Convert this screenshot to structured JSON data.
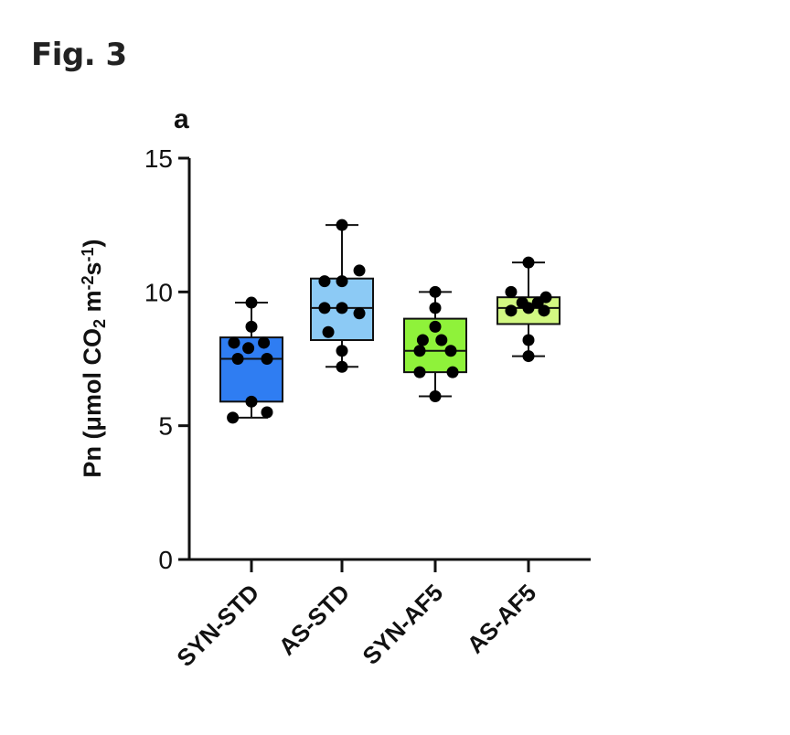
{
  "figure": {
    "label": "Fig. 3"
  },
  "chart_data": {
    "type": "box",
    "panel_label": "a",
    "ylabel_parts": {
      "pre": "Pn (μmol CO",
      "sub": "2",
      "mid": " m",
      "sup1": "-2",
      "s": "s",
      "sup2": "-1",
      "post": ")"
    },
    "ylim": [
      0,
      15
    ],
    "yticks": [
      0,
      5,
      10,
      15
    ],
    "categories": [
      "SYN-STD",
      "AS-STD",
      "SYN-AF5",
      "AS-AF5"
    ],
    "colors": [
      "#2f7df2",
      "#8ccaf5",
      "#8ff23a",
      "#d2f782"
    ],
    "boxes": [
      {
        "min": 5.3,
        "q1": 5.9,
        "median": 7.5,
        "q3": 8.3,
        "max": 9.6
      },
      {
        "min": 7.2,
        "q1": 8.2,
        "median": 9.4,
        "q3": 10.5,
        "max": 12.5
      },
      {
        "min": 6.1,
        "q1": 7.0,
        "median": 7.8,
        "q3": 9.0,
        "max": 10.0
      },
      {
        "min": 7.6,
        "q1": 8.8,
        "median": 9.4,
        "q3": 9.8,
        "max": 11.1
      }
    ],
    "points": [
      [
        [
          0.0,
          9.6
        ],
        [
          0.0,
          8.7
        ],
        [
          -0.28,
          8.1
        ],
        [
          0.2,
          8.1
        ],
        [
          -0.05,
          7.9
        ],
        [
          0.25,
          7.5
        ],
        [
          -0.22,
          7.5
        ],
        [
          0.0,
          5.9
        ],
        [
          -0.3,
          5.3
        ],
        [
          0.25,
          5.5
        ]
      ],
      [
        [
          0.0,
          12.5
        ],
        [
          -0.28,
          10.4
        ],
        [
          0.0,
          10.4
        ],
        [
          0.28,
          10.8
        ],
        [
          -0.28,
          9.4
        ],
        [
          0.0,
          9.4
        ],
        [
          0.28,
          9.2
        ],
        [
          -0.22,
          8.5
        ],
        [
          0.0,
          7.8
        ],
        [
          0.0,
          7.2
        ]
      ],
      [
        [
          0.0,
          10.0
        ],
        [
          0.0,
          9.4
        ],
        [
          0.0,
          8.7
        ],
        [
          -0.2,
          8.2
        ],
        [
          0.1,
          8.2
        ],
        [
          -0.25,
          7.8
        ],
        [
          0.25,
          7.8
        ],
        [
          -0.25,
          7.0
        ],
        [
          0.28,
          7.0
        ],
        [
          0.0,
          6.1
        ]
      ],
      [
        [
          0.0,
          11.1
        ],
        [
          -0.28,
          10.0
        ],
        [
          0.28,
          9.8
        ],
        [
          -0.1,
          9.6
        ],
        [
          0.15,
          9.6
        ],
        [
          0.0,
          9.4
        ],
        [
          -0.28,
          9.3
        ],
        [
          0.25,
          9.3
        ],
        [
          0.0,
          8.2
        ],
        [
          0.0,
          7.6
        ]
      ]
    ]
  }
}
